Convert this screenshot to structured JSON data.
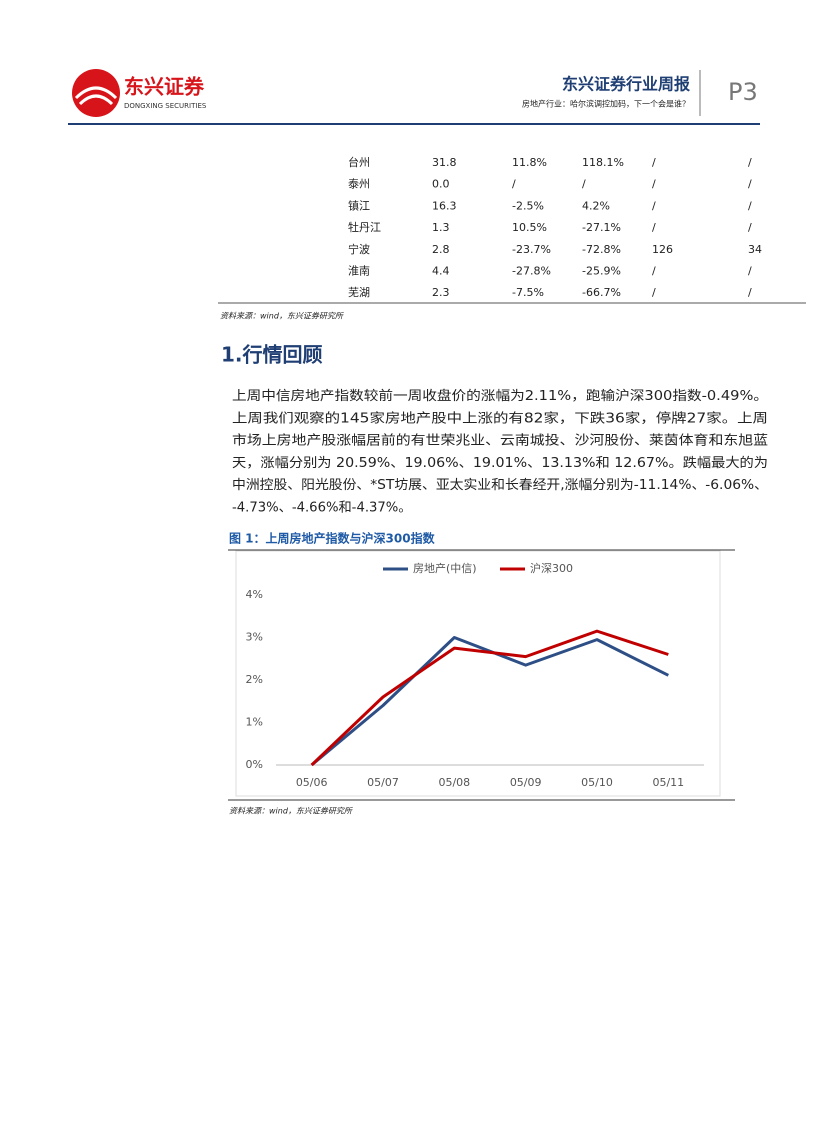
{
  "header": {
    "logo_name": "东兴证券",
    "logo_en": "DONGXING SECURITIES",
    "title": "东兴证券行业周报",
    "subtitle": "房地产行业：哈尔滨调控加码，下一个会是谁？",
    "page": "P3"
  },
  "table": {
    "rows": [
      [
        "台州",
        "31.8",
        "11.8%",
        "118.1%",
        "/",
        "/"
      ],
      [
        "泰州",
        "0.0",
        "/",
        "/",
        "/",
        "/"
      ],
      [
        "镇江",
        "16.3",
        "-2.5%",
        "4.2%",
        "/",
        "/"
      ],
      [
        "牡丹江",
        "1.3",
        "10.5%",
        "-27.1%",
        "/",
        "/"
      ],
      [
        "宁波",
        "2.8",
        "-23.7%",
        "-72.8%",
        "126",
        "34"
      ],
      [
        "淮南",
        "4.4",
        "-27.8%",
        "-25.9%",
        "/",
        "/"
      ],
      [
        "芜湖",
        "2.3",
        "-7.5%",
        "-66.7%",
        "/",
        "/"
      ]
    ],
    "source": "资料来源：wind，东兴证券研究所"
  },
  "section": {
    "heading": "1.行情回顾",
    "paragraph": [
      "上周中信房地产指数较前一周收盘价的涨幅为2.11%，跑输沪深300指数-0.49%。",
      "上周我们观察的145家房地产股中上涨的有82家，下跌36家，停牌27家。上周",
      "市场上房地产股涨幅居前的有世荣兆业、云南城投、沙河股份、莱茵体育和东旭蓝",
      "天，涨幅分别为 20.59%、19.06%、19.01%、13.13%和 12.67%。跌幅最大的为",
      "中洲控股、阳光股份、*ST坊展、亚太实业和长春经开,涨幅分别为-11.14%、-6.06%、",
      "-4.73%、-4.66%和-4.37%。"
    ]
  },
  "figure": {
    "title": "图 1：上周房地产指数与沪深300指数",
    "source": "资料来源：wind，东兴证券研究所"
  },
  "chart_data": {
    "type": "line",
    "categories": [
      "05/06",
      "05/07",
      "05/08",
      "05/09",
      "05/10",
      "05/11"
    ],
    "series": [
      {
        "name": "房地产(中信)",
        "color": "#2e4f86",
        "values": [
          0,
          1.4,
          3.0,
          2.35,
          2.95,
          2.11
        ]
      },
      {
        "name": "沪深300",
        "color": "#c00000",
        "values": [
          0,
          1.6,
          2.75,
          2.55,
          3.15,
          2.6
        ]
      }
    ],
    "ylim": [
      0,
      4
    ],
    "yticks": [
      {
        "value": 0,
        "label": "0%"
      },
      {
        "value": 1,
        "label": "1%"
      },
      {
        "value": 2,
        "label": "2%"
      },
      {
        "value": 3,
        "label": "3%"
      },
      {
        "value": 4,
        "label": "4%"
      }
    ],
    "grid": false
  }
}
